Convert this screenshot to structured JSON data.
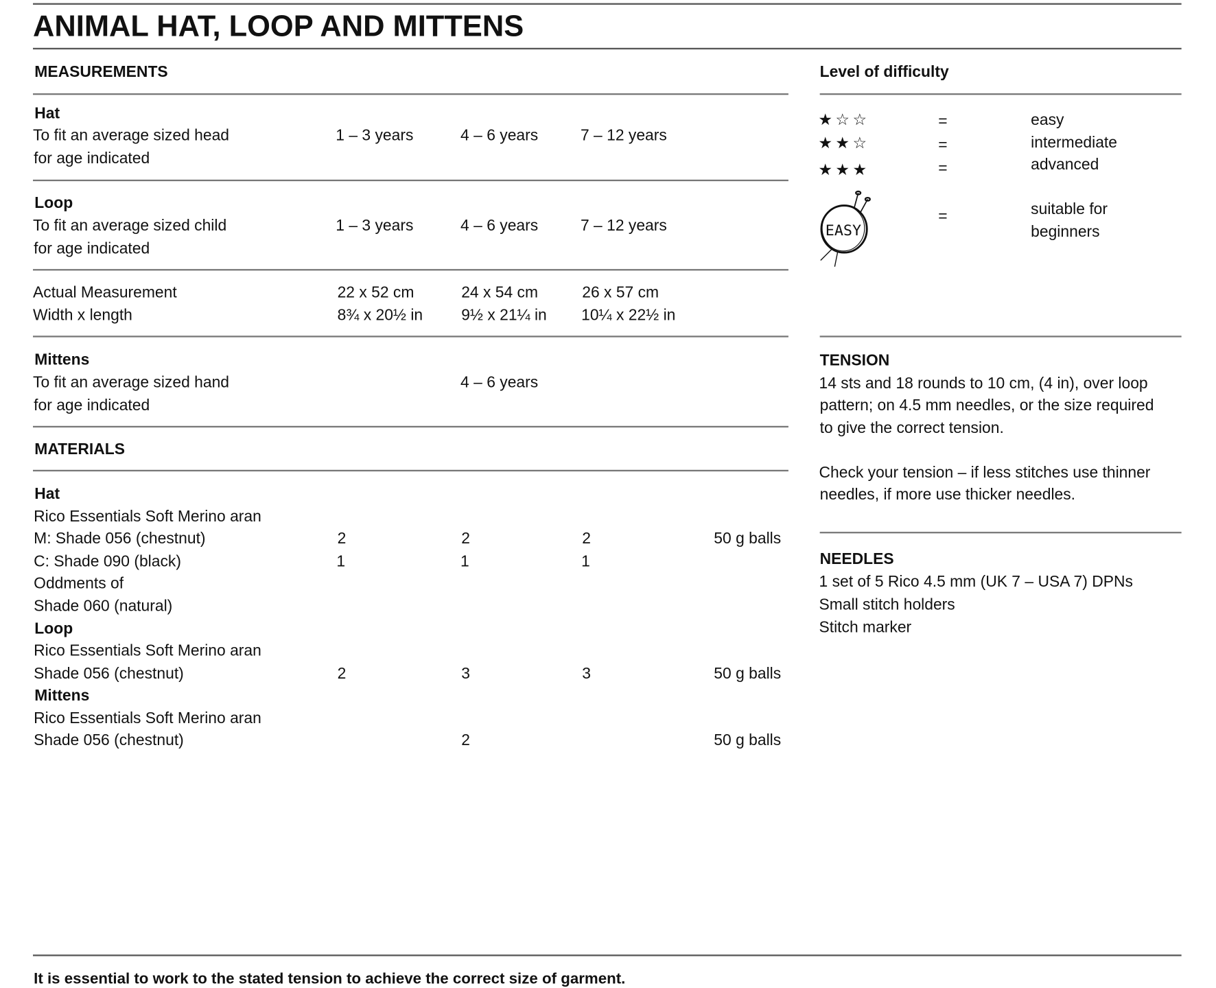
{
  "title": "ANIMAL HAT, LOOP AND MITTENS",
  "measurements": {
    "heading": "MEASUREMENTS",
    "hat": {
      "label": "Hat",
      "line1": "To fit an average sized head",
      "line2": "for age indicated",
      "sizes": [
        "1 – 3 years",
        "4 – 6 years",
        "7 – 12 years"
      ]
    },
    "loop": {
      "label": "Loop",
      "line1": "To fit an average sized child",
      "line2": "for age indicated",
      "sizes": [
        "1 – 3 years",
        "4 – 6 years",
        "7 – 12 years"
      ]
    },
    "actual": {
      "line1": "Actual Measurement",
      "line2": "Width x length",
      "cm": [
        "22 x 52 cm",
        "24 x 54 cm",
        "26 x 57 cm"
      ],
      "in": [
        "8¾ x 20½ in",
        "9½ x 21¼ in",
        "10¼ x 22½ in"
      ]
    },
    "mittens": {
      "label": "Mittens",
      "line1": "To fit an average sized hand",
      "line2": "for age indicated",
      "size": "4 – 6 years"
    }
  },
  "materials": {
    "heading": "MATERIALS",
    "hat": {
      "label": "Hat",
      "yarn": "Rico Essentials Soft Merino aran",
      "m_shade": "M: Shade 056 (chestnut)",
      "m_qty": [
        "2",
        "2",
        "2"
      ],
      "unit": "50 g balls",
      "c_shade": "C: Shade 090 (black)",
      "c_qty": [
        "1",
        "1",
        "1"
      ],
      "odd1": "Oddments of",
      "odd2": "Shade 060 (natural)"
    },
    "loop": {
      "label": "Loop",
      "yarn": "Rico Essentials Soft Merino aran",
      "shade": "Shade 056 (chestnut)",
      "qty": [
        "2",
        "3",
        "3"
      ],
      "unit": "50 g balls"
    },
    "mittens": {
      "label": "Mittens",
      "yarn": "Rico Essentials Soft Merino aran",
      "shade": "Shade 056 (chestnut)",
      "qty": "2",
      "unit": "50 g balls"
    }
  },
  "difficulty": {
    "heading": "Level of difficulty",
    "levels": [
      {
        "stars": "★☆☆",
        "eq": "=",
        "label": "easy"
      },
      {
        "stars": "★★☆",
        "eq": "=",
        "label": "intermediate"
      },
      {
        "stars": "★★★",
        "eq": "=",
        "label": "advanced"
      }
    ],
    "easy_badge": {
      "icon": "easy-knitting-badge",
      "badge_text": "EASY",
      "eq": "=",
      "line1": "suitable for",
      "line2": "beginners"
    }
  },
  "tension": {
    "heading": "TENSION",
    "lines": [
      "14 sts and 18 rounds to 10 cm, (4 in), over loop",
      "pattern; on 4.5 mm needles, or the size required",
      "to give the correct tension."
    ],
    "check": [
      "Check your tension – if less stitches use thinner",
      "needles, if more use thicker needles."
    ]
  },
  "needles": {
    "heading": "NEEDLES",
    "lines": [
      "1 set of 5 Rico 4.5 mm (UK 7 – USA 7) DPNs",
      "Small stitch holders",
      "Stitch marker"
    ]
  },
  "footer": "It is essential to work to the stated tension to achieve the correct size of garment."
}
